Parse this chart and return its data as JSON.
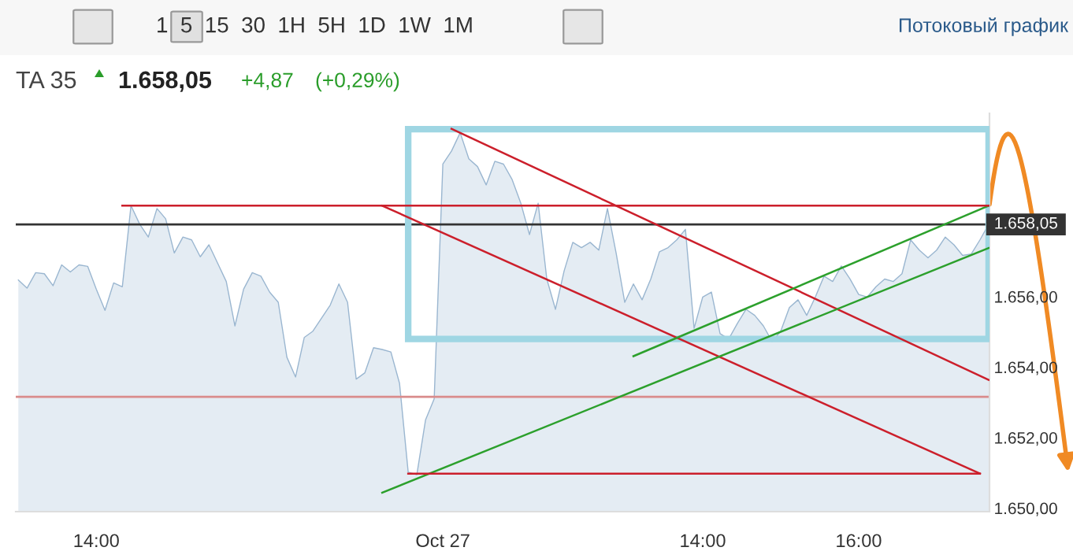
{
  "chart_data": {
    "type": "area",
    "title": "TA 35",
    "annotations": [
      "1  5  15  30  1H  5H  1D  1W  1M",
      "Потоковый график",
      "1.658,05",
      "+4,87",
      "(+0,29%)"
    ],
    "categories": [
      null,
      null,
      null,
      null,
      null,
      null,
      null,
      null,
      null,
      "14:00",
      null,
      null,
      null,
      null,
      null,
      null,
      null,
      null,
      null,
      null,
      null,
      null,
      null,
      null,
      null,
      null,
      null,
      null,
      null,
      null,
      null,
      null,
      null,
      null,
      null,
      null,
      null,
      null,
      null,
      null,
      null,
      null,
      null,
      null,
      null,
      null,
      null,
      null,
      null,
      "Oct 27",
      null,
      null,
      null,
      null,
      null,
      null,
      null,
      null,
      null,
      null,
      null,
      null,
      null,
      null,
      null,
      null,
      null,
      null,
      null,
      null,
      null,
      null,
      null,
      null,
      null,
      null,
      null,
      null,
      null,
      "14:00",
      null,
      null,
      null,
      null,
      null,
      null,
      null,
      null,
      null,
      null,
      null,
      null,
      null,
      null,
      null,
      null,
      null,
      "16:00",
      null,
      null,
      null,
      null,
      null,
      null,
      null,
      null,
      null,
      null,
      null,
      null,
      null,
      null,
      null
    ],
    "series": [
      {
        "color": "#9ab6d0",
        "values": [
          1656.47,
          1656.24,
          1656.68,
          1656.65,
          1656.31,
          1656.9,
          1656.7,
          1656.9,
          1656.86,
          1656.21,
          1655.61,
          1656.39,
          1656.28,
          1658.58,
          1658.06,
          1657.69,
          1658.5,
          1658.21,
          1657.24,
          1657.69,
          1657.61,
          1657.13,
          1657.47,
          1656.95,
          1656.43,
          1655.17,
          1656.21,
          1656.68,
          1656.58,
          1656.13,
          1655.84,
          1654.28,
          1653.72,
          1654.84,
          1655.02,
          1655.39,
          1655.76,
          1656.36,
          1655.84,
          1653.66,
          1653.84,
          1654.55,
          1654.5,
          1654.43,
          1653.54,
          1651.02,
          1650.95,
          1652.5,
          1653.1,
          1659.76,
          1660.13,
          1660.65,
          1659.91,
          1659.69,
          1659.17,
          1659.84,
          1659.76,
          1659.32,
          1658.65,
          1657.76,
          1658.65,
          1656.5,
          1655.64,
          1656.73,
          1657.54,
          1657.39,
          1657.54,
          1657.32,
          1658.5,
          1657.24,
          1655.84,
          1656.36,
          1655.91,
          1656.5,
          1657.27,
          1657.39,
          1657.61,
          1657.91,
          1655.1,
          1655.99,
          1656.13,
          1654.95,
          1654.8,
          1655.24,
          1655.64,
          1655.47,
          1655.17,
          1654.73,
          1655.02,
          1655.69,
          1655.91,
          1655.47,
          1655.99,
          1656.58,
          1656.43,
          1656.87,
          1656.5,
          1656.06,
          1655.99,
          1656.28,
          1656.5,
          1656.43,
          1656.65,
          1657.61,
          1657.32,
          1657.1,
          1657.32,
          1657.69,
          1657.47,
          1657.17,
          1657.21,
          1657.61,
          1658.05
        ]
      },
      {
        "type": "line",
        "color": "#cc1f2b",
        "values": [
          null,
          null,
          null,
          null,
          null,
          null,
          null,
          null,
          null,
          null,
          null,
          null,
          null,
          null,
          null,
          null,
          null,
          null,
          null,
          null,
          null,
          null,
          null,
          null,
          null,
          null,
          null,
          null,
          null,
          null,
          null,
          null,
          null,
          null,
          null,
          null,
          null,
          null,
          null,
          null,
          null,
          null,
          null,
          null,
          null,
          null,
          null,
          null,
          null,
          null,
          1660.76,
          null,
          null,
          null,
          null,
          null,
          null,
          null,
          null,
          null,
          null,
          null,
          null,
          null,
          null,
          null,
          null,
          null,
          null,
          null,
          null,
          null,
          null,
          null,
          null,
          null,
          null,
          null,
          null,
          null,
          null,
          null,
          null,
          null,
          null,
          null,
          null,
          null,
          null,
          null,
          null,
          null,
          null,
          null,
          null,
          null,
          null,
          null,
          null,
          null,
          null,
          null,
          null,
          null,
          null,
          null,
          null,
          null,
          null,
          null,
          null,
          null,
          1653.64
        ]
      },
      {
        "type": "line",
        "color": "#cc1f2b",
        "values": [
          null,
          null,
          null,
          null,
          null,
          null,
          null,
          null,
          null,
          null,
          null,
          null,
          null,
          null,
          null,
          null,
          null,
          null,
          null,
          null,
          null,
          null,
          null,
          null,
          null,
          null,
          null,
          null,
          null,
          null,
          null,
          null,
          null,
          null,
          null,
          null,
          null,
          null,
          null,
          null,
          null,
          null,
          1658.58,
          null,
          null,
          null,
          null,
          null,
          null,
          null,
          null,
          null,
          null,
          null,
          null,
          null,
          null,
          null,
          null,
          null,
          null,
          null,
          null,
          null,
          null,
          null,
          null,
          null,
          null,
          null,
          null,
          null,
          null,
          null,
          null,
          null,
          null,
          null,
          null,
          null,
          null,
          null,
          null,
          null,
          null,
          null,
          null,
          null,
          null,
          null,
          null,
          null,
          null,
          null,
          null,
          null,
          null,
          null,
          null,
          null,
          null,
          null,
          null,
          null,
          null,
          null,
          null,
          null,
          null,
          null,
          null,
          1650.98,
          null
        ]
      },
      {
        "type": "line",
        "color": "#2ca02c",
        "values": [
          null,
          null,
          null,
          null,
          null,
          null,
          null,
          null,
          null,
          null,
          null,
          null,
          null,
          null,
          null,
          null,
          null,
          null,
          null,
          null,
          null,
          null,
          null,
          null,
          null,
          null,
          null,
          null,
          null,
          null,
          null,
          null,
          null,
          null,
          null,
          null,
          null,
          null,
          null,
          null,
          null,
          null,
          1650.44,
          null,
          null,
          null,
          null,
          null,
          null,
          null,
          null,
          null,
          null,
          null,
          null,
          null,
          null,
          null,
          null,
          null,
          null,
          null,
          null,
          null,
          null,
          null,
          null,
          null,
          null,
          null,
          null,
          null,
          null,
          null,
          null,
          null,
          null,
          null,
          null,
          null,
          null,
          null,
          null,
          null,
          null,
          null,
          null,
          null,
          null,
          null,
          null,
          null,
          null,
          null,
          null,
          null,
          null,
          null,
          null,
          null,
          null,
          null,
          null,
          null,
          null,
          null,
          null,
          null,
          null,
          null,
          null,
          null,
          1657.38
        ]
      },
      {
        "type": "line",
        "color": "#2ca02c",
        "values": [
          null,
          null,
          null,
          null,
          null,
          null,
          null,
          null,
          null,
          null,
          null,
          null,
          null,
          null,
          null,
          null,
          null,
          null,
          null,
          null,
          null,
          null,
          null,
          null,
          null,
          null,
          null,
          null,
          null,
          null,
          null,
          null,
          null,
          null,
          null,
          null,
          null,
          null,
          null,
          null,
          null,
          null,
          null,
          null,
          null,
          null,
          null,
          null,
          null,
          null,
          null,
          null,
          null,
          null,
          null,
          null,
          null,
          null,
          null,
          null,
          null,
          null,
          null,
          null,
          null,
          null,
          null,
          null,
          null,
          null,
          null,
          1654.31,
          null,
          null,
          null,
          null,
          null,
          null,
          null,
          null,
          null,
          null,
          null,
          null,
          null,
          null,
          null,
          null,
          null,
          null,
          null,
          null,
          null,
          null,
          null,
          null,
          null,
          null,
          null,
          null,
          null,
          null,
          null,
          null,
          null,
          null,
          null,
          null,
          null,
          null,
          null,
          null,
          1658.58
        ]
      },
      {
        "type": "line",
        "color": "#cc1f2b",
        "values": [
          null,
          null,
          null,
          null,
          null,
          null,
          null,
          null,
          null,
          null,
          null,
          null,
          1658.58,
          null,
          null,
          null,
          null,
          null,
          null,
          null,
          null,
          null,
          null,
          null,
          null,
          null,
          null,
          null,
          null,
          null,
          null,
          null,
          null,
          null,
          null,
          null,
          null,
          null,
          null,
          null,
          null,
          null,
          null,
          null,
          null,
          null,
          null,
          null,
          null,
          null,
          null,
          null,
          null,
          null,
          null,
          null,
          null,
          null,
          null,
          null,
          null,
          null,
          null,
          null,
          null,
          null,
          null,
          null,
          null,
          null,
          null,
          null,
          null,
          null,
          null,
          null,
          null,
          null,
          null,
          null,
          null,
          null,
          null,
          null,
          null,
          null,
          null,
          null,
          null,
          null,
          null,
          null,
          null,
          null,
          null,
          null,
          null,
          null,
          null,
          null,
          null,
          null,
          null,
          null,
          null,
          null,
          null,
          null,
          null,
          null,
          null,
          null,
          1658.58
        ]
      },
      {
        "type": "line",
        "color": "#cc1f2b",
        "values": [
          null,
          null,
          null,
          null,
          null,
          null,
          null,
          null,
          null,
          null,
          null,
          null,
          null,
          null,
          null,
          null,
          null,
          null,
          null,
          null,
          null,
          null,
          null,
          null,
          null,
          null,
          null,
          null,
          null,
          null,
          null,
          null,
          null,
          null,
          null,
          null,
          null,
          null,
          null,
          null,
          null,
          null,
          null,
          null,
          null,
          1650.98,
          null,
          null,
          null,
          null,
          null,
          null,
          null,
          null,
          null,
          null,
          null,
          null,
          null,
          null,
          null,
          null,
          null,
          null,
          null,
          null,
          null,
          null,
          null,
          null,
          null,
          null,
          null,
          null,
          null,
          null,
          null,
          null,
          null,
          null,
          null,
          null,
          null,
          null,
          null,
          null,
          null,
          null,
          null,
          null,
          null,
          null,
          null,
          null,
          null,
          null,
          null,
          null,
          null,
          null,
          null,
          null,
          null,
          null,
          null,
          null,
          null,
          null,
          null,
          null,
          null,
          1650.98,
          null
        ]
      }
    ],
    "ref_lines": [
      {
        "axis": "y",
        "value": 1658.05,
        "label": "1.658,05",
        "color": "#333333"
      },
      {
        "axis": "y",
        "value": 1653.16,
        "color": "#d98c8c"
      }
    ],
    "ylim": [
      1649.9,
      1661.2
    ],
    "yticks": [
      {
        "value": 1650,
        "label": "1.650,00"
      },
      {
        "value": 1652,
        "label": "1.652,00"
      },
      {
        "value": 1654,
        "label": "1.654,00"
      },
      {
        "value": 1656,
        "label": "1.656,00"
      }
    ],
    "grid": false,
    "legend": false,
    "marker": "none"
  }
}
